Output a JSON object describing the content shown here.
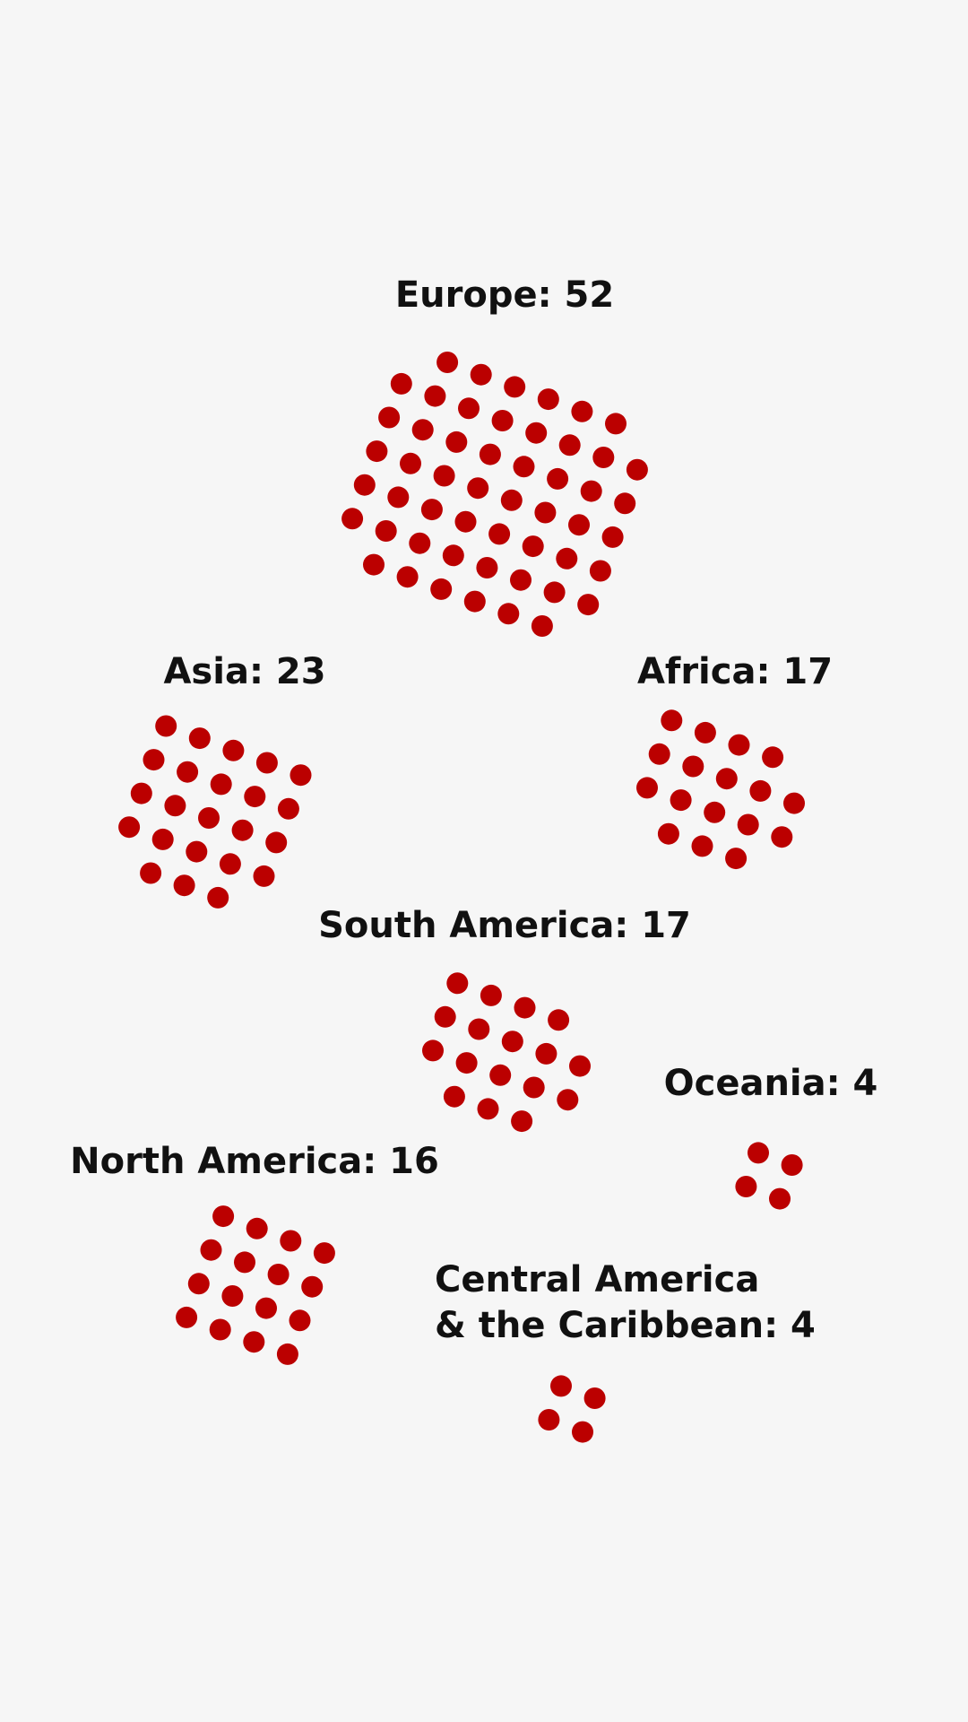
{
  "colors": {
    "background": "#f6f6f6",
    "dot": "#bb0000",
    "label": "#111111"
  },
  "chart_data": {
    "type": "dot-cluster",
    "unit": "one dot per country",
    "groups": [
      {
        "key": "europe",
        "label_lines": [
          "Europe: 52"
        ],
        "name": "Europe",
        "value": 52
      },
      {
        "key": "asia",
        "label_lines": [
          "Asia: 23"
        ],
        "name": "Asia",
        "value": 23
      },
      {
        "key": "africa",
        "label_lines": [
          "Africa: 17"
        ],
        "name": "Africa",
        "value": 17
      },
      {
        "key": "south-america",
        "label_lines": [
          "South America: 17"
        ],
        "name": "South America",
        "value": 17
      },
      {
        "key": "oceania",
        "label_lines": [
          "Oceania: 4"
        ],
        "name": "Oceania",
        "value": 4
      },
      {
        "key": "north-america",
        "label_lines": [
          "North America: 16"
        ],
        "name": "North America",
        "value": 16
      },
      {
        "key": "central-america-caribbean",
        "label_lines": [
          "Central America",
          "& the Caribbean: 4"
        ],
        "name": "Central America & the Caribbean",
        "value": 4
      }
    ]
  }
}
